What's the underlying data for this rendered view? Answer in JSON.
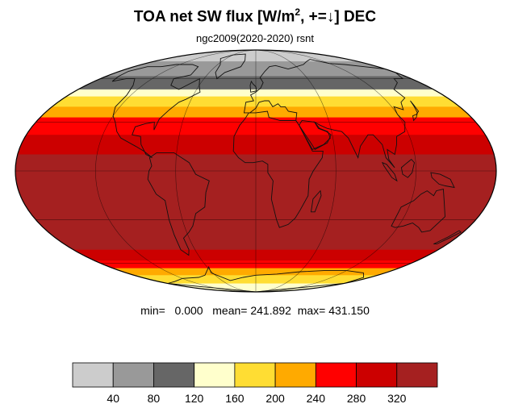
{
  "header": {
    "title_main": "TOA net SW flux [W/m",
    "title_sup": "2",
    "title_tail": ", +=↓]  DEC",
    "subtitle": "ngc2009(2020-2020)   rsnt"
  },
  "stats": {
    "min_label": "min=",
    "min_value": "0.000",
    "mean_label": "mean=",
    "mean_value": "241.892",
    "max_label": "max=",
    "max_value": "431.150"
  },
  "map": {
    "projection": "Mollweide",
    "variable": "rsnt",
    "bands": [
      {
        "lat_from": 90,
        "lat_to": 75,
        "value": 20
      },
      {
        "lat_from": 75,
        "lat_to": 62,
        "value": 60
      },
      {
        "lat_from": 62,
        "lat_to": 52,
        "value": 100
      },
      {
        "lat_from": 52,
        "lat_to": 47,
        "value": 140
      },
      {
        "lat_from": 47,
        "lat_to": 40,
        "value": 180
      },
      {
        "lat_from": 40,
        "lat_to": 33,
        "value": 220
      },
      {
        "lat_from": 33,
        "lat_to": 22,
        "value": 260
      },
      {
        "lat_from": 22,
        "lat_to": 10,
        "value": 300
      },
      {
        "lat_from": 10,
        "lat_to": -50,
        "value": 340
      },
      {
        "lat_from": -50,
        "lat_to": -58,
        "value": 300
      },
      {
        "lat_from": -58,
        "lat_to": -64,
        "value": 260
      },
      {
        "lat_from": -64,
        "lat_to": -70,
        "value": 220
      },
      {
        "lat_from": -70,
        "lat_to": -78,
        "value": 180
      },
      {
        "lat_from": -78,
        "lat_to": -90,
        "value": 140
      }
    ]
  },
  "colorbar": {
    "boundaries": [
      0,
      40,
      80,
      120,
      160,
      200,
      240,
      280,
      320,
      360
    ],
    "colors": [
      "#cccccc",
      "#999999",
      "#666666",
      "#ffffcc",
      "#ffdd33",
      "#ffaa00",
      "#ff0000",
      "#cc0000",
      "#a52020"
    ],
    "tick_labels": [
      "40",
      "80",
      "120",
      "160",
      "200",
      "240",
      "280",
      "320"
    ]
  }
}
